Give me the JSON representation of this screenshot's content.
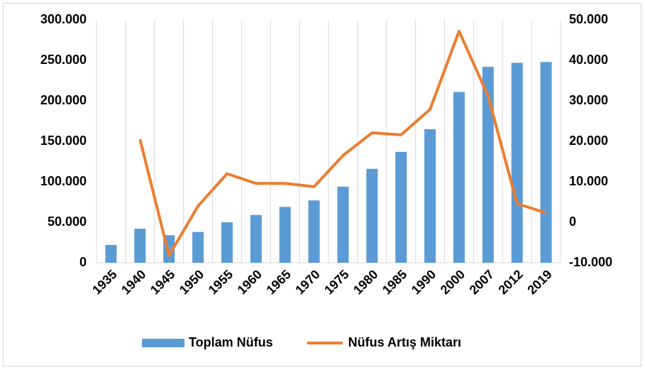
{
  "chart_data": {
    "type": "bar_line",
    "categories": [
      "1935",
      "1940",
      "1945",
      "1950",
      "1955",
      "1960",
      "1965",
      "1970",
      "1975",
      "1980",
      "1985",
      "1990",
      "2000",
      "2007",
      "2012",
      "2019"
    ],
    "series": [
      {
        "name": "Toplam Nüfus",
        "type": "bar",
        "color": "#5b9bd5",
        "axis": "y",
        "values": [
          22000,
          42000,
          34000,
          38000,
          50000,
          59000,
          69000,
          77000,
          94000,
          116000,
          137000,
          165000,
          211000,
          242000,
          247000,
          248000
        ]
      },
      {
        "name": "Nüfus Artış Miktarı",
        "type": "line",
        "color": "#ed7d31",
        "axis": "y2",
        "values": [
          null,
          20500,
          -8200,
          4000,
          12000,
          9600,
          9600,
          8800,
          16500,
          22100,
          21600,
          27900,
          47200,
          31200,
          4600,
          2300
        ]
      }
    ],
    "ylim": [
      0,
      300000
    ],
    "yticks": [
      0,
      {
        "value": 50000,
        "label": "50.000"
      },
      {
        "value": 100000,
        "label": "100.000"
      },
      {
        "value": 150000,
        "label": "150.000"
      },
      {
        "value": 200000,
        "label": "200.000"
      },
      {
        "value": 250000,
        "label": "250.000"
      },
      {
        "value": 300000,
        "label": "300.000"
      }
    ],
    "y2lim": [
      -10000,
      50000
    ],
    "y2ticks": [
      {
        "value": -10000,
        "label": "-10.000"
      },
      0,
      {
        "value": 10000,
        "label": "10.000"
      },
      {
        "value": 20000,
        "label": "20.000"
      },
      {
        "value": 30000,
        "label": "30.000"
      },
      {
        "value": 40000,
        "label": "40.000"
      },
      {
        "value": 50000,
        "label": "50.000"
      }
    ],
    "legend": "bottom"
  }
}
